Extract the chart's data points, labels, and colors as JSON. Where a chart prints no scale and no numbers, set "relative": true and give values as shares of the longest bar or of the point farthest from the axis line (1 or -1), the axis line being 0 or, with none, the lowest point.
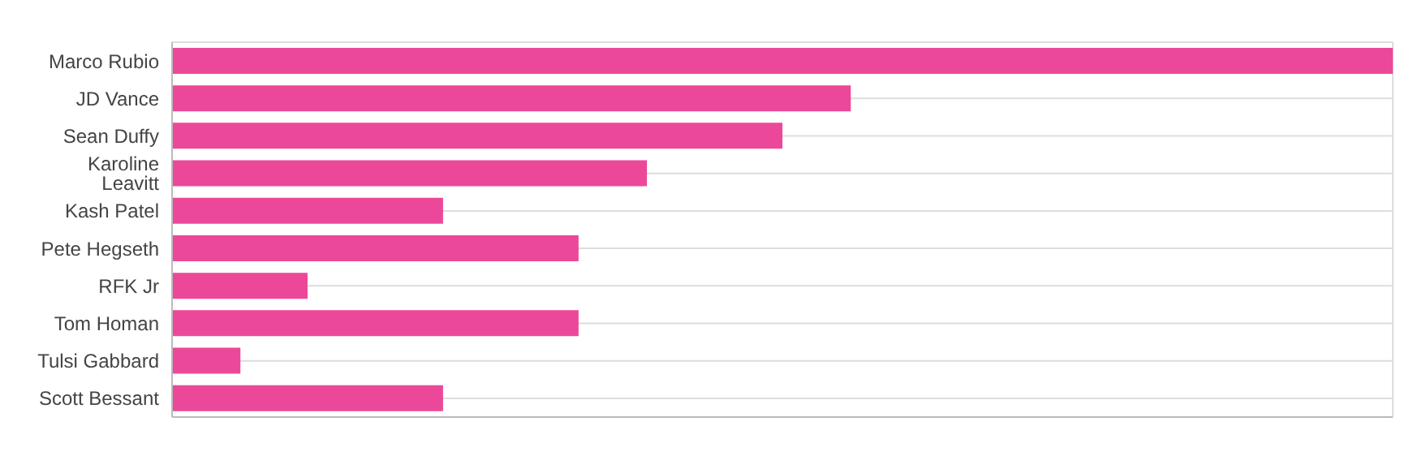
{
  "chart_data": {
    "type": "bar",
    "orientation": "horizontal",
    "relative": true,
    "grid": true,
    "color": "#ec4899",
    "categories": [
      "Marco Rubio",
      "JD Vance",
      "Sean Duffy",
      "Karoline Leavitt",
      "Kash Patel",
      "Pete Hegseth",
      "RFK Jr",
      "Tom Homan",
      "Tulsi Gabbard",
      "Scott Bessant"
    ],
    "values": [
      1,
      0.556,
      0.5,
      0.389,
      0.222,
      0.333,
      0.111,
      0.333,
      0.056,
      0.222
    ]
  }
}
